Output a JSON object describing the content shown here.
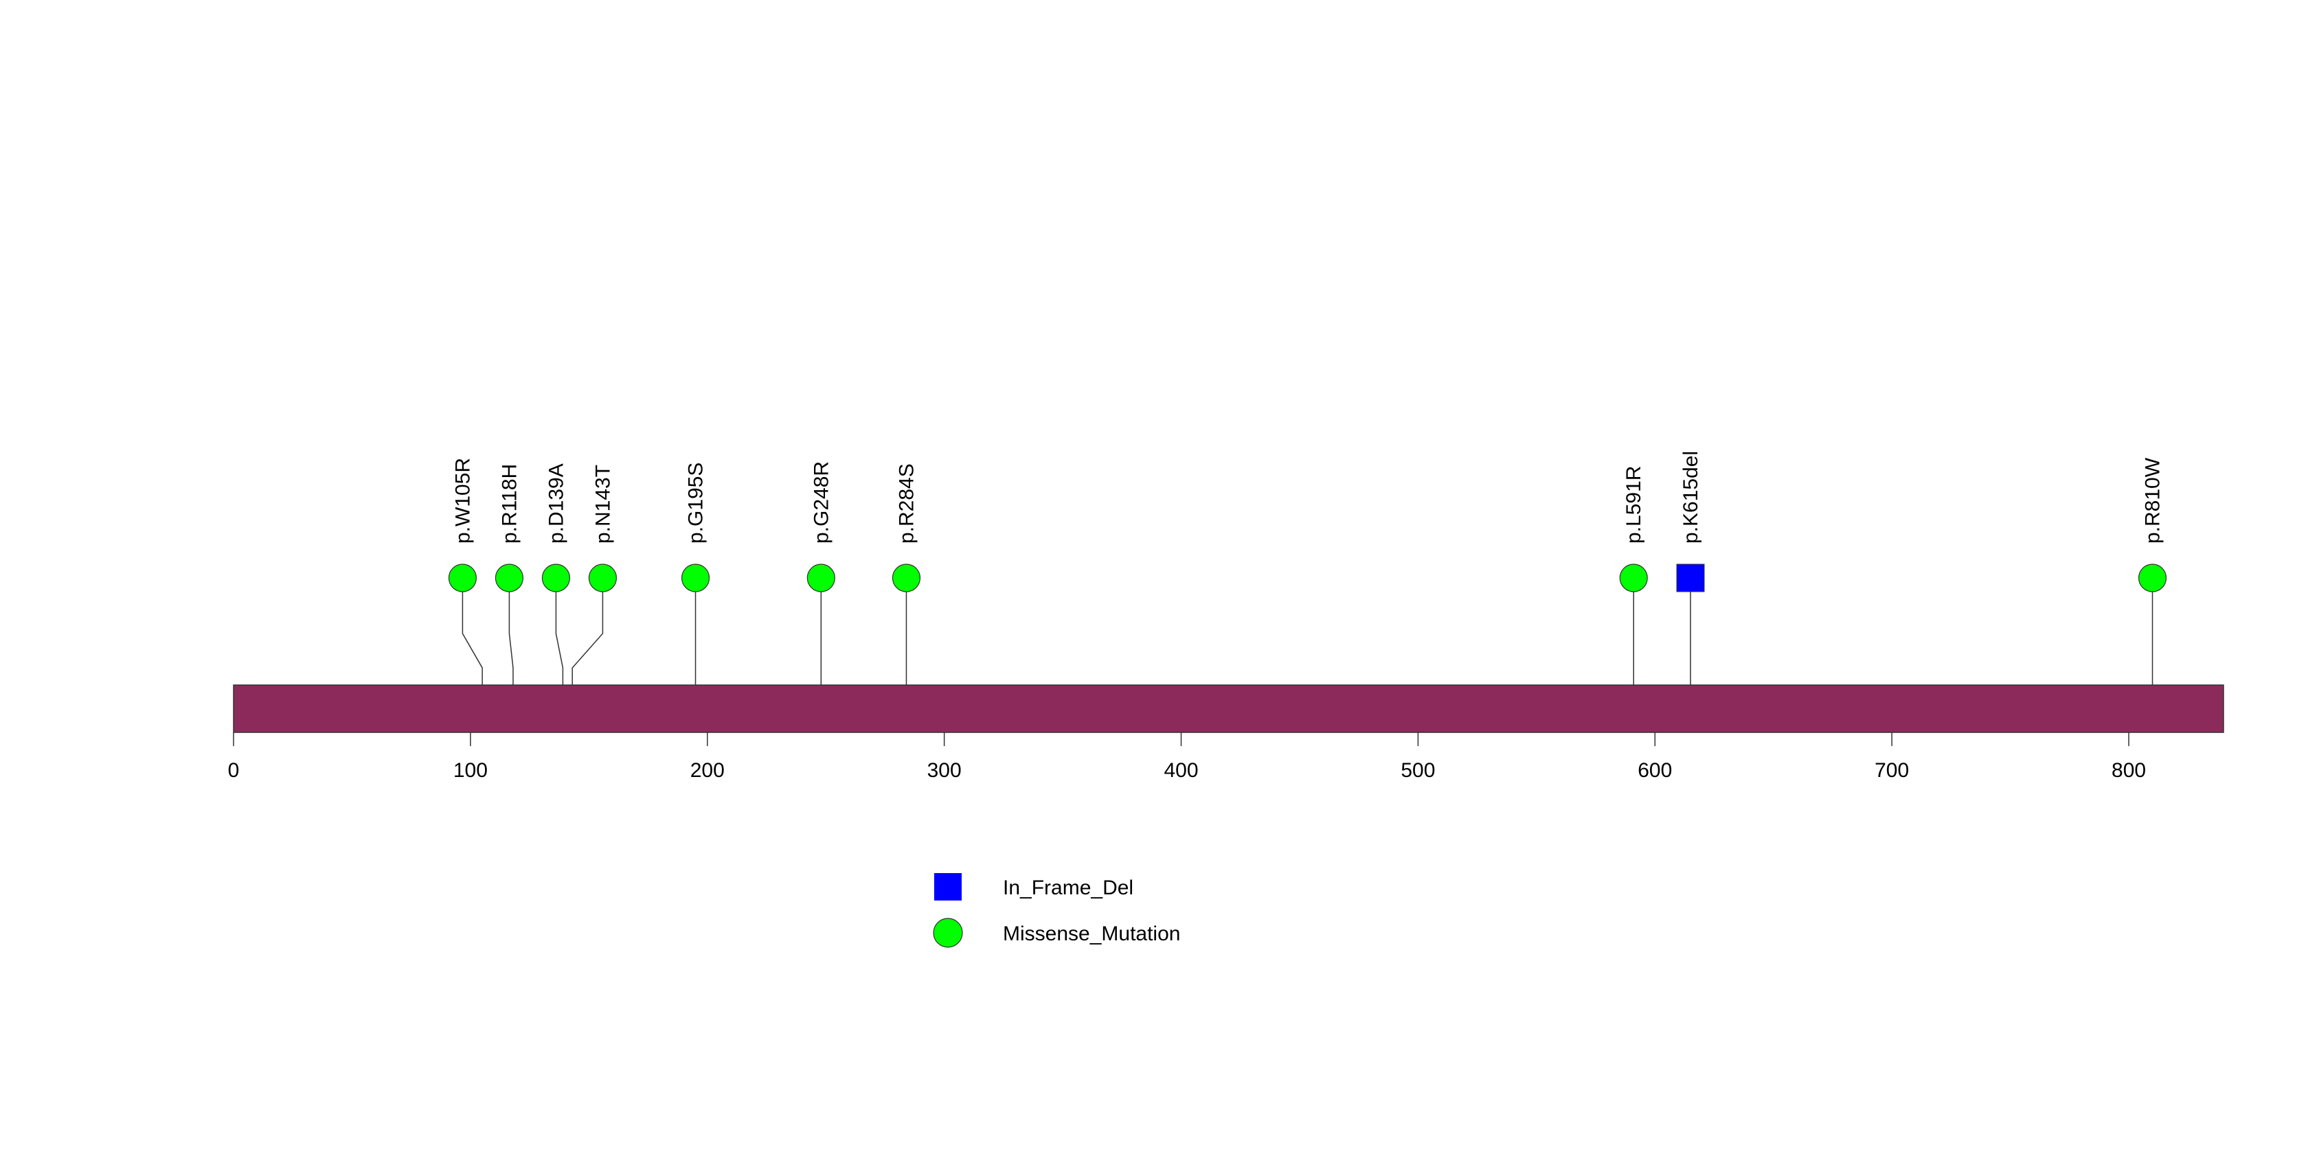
{
  "chart_data": {
    "type": "lollipop",
    "protein_length": 840,
    "axis": {
      "xlim": [
        0,
        840
      ],
      "ticks": [
        0,
        100,
        200,
        300,
        400,
        500,
        600,
        700,
        800
      ],
      "tick_labels": [
        "0",
        "100",
        "200",
        "300",
        "400",
        "500",
        "600",
        "700",
        "800"
      ]
    },
    "mutations": [
      {
        "label": "p.W105R",
        "position": 105,
        "type": "Missense_Mutation"
      },
      {
        "label": "p.R118H",
        "position": 118,
        "type": "Missense_Mutation"
      },
      {
        "label": "p.D139A",
        "position": 139,
        "type": "Missense_Mutation"
      },
      {
        "label": "p.N143T",
        "position": 143,
        "type": "Missense_Mutation"
      },
      {
        "label": "p.G195S",
        "position": 195,
        "type": "Missense_Mutation"
      },
      {
        "label": "p.G248R",
        "position": 248,
        "type": "Missense_Mutation"
      },
      {
        "label": "p.R284S",
        "position": 284,
        "type": "Missense_Mutation"
      },
      {
        "label": "p.L591R",
        "position": 591,
        "type": "Missense_Mutation"
      },
      {
        "label": "p.K615del",
        "position": 615,
        "type": "In_Frame_Del"
      },
      {
        "label": "p.R810W",
        "position": 810,
        "type": "Missense_Mutation"
      }
    ],
    "legend": [
      {
        "label": "In_Frame_Del",
        "shape": "square",
        "color": "#0000ff"
      },
      {
        "label": "Missense_Mutation",
        "shape": "circle",
        "color": "#00ff00"
      }
    ],
    "colors": {
      "protein_bar": "#8b2a5b",
      "In_Frame_Del": "#0000ff",
      "Missense_Mutation": "#00ff00"
    }
  }
}
